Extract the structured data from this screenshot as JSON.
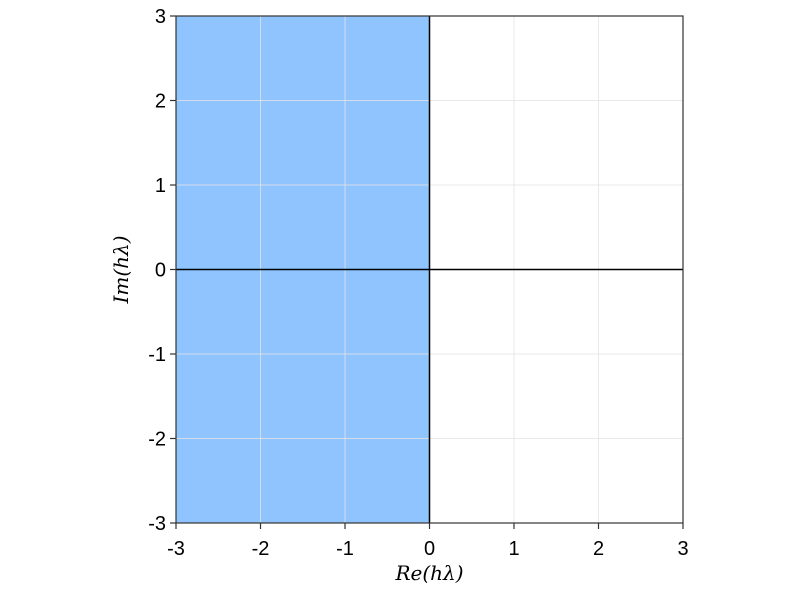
{
  "chart_data": {
    "type": "area",
    "xlabel": "Re(hλ)",
    "ylabel": "Im(hλ)",
    "xlim": [
      -3,
      3
    ],
    "ylim": [
      -3,
      3
    ],
    "x_ticks": [
      -3,
      -2,
      -1,
      0,
      1,
      2,
      3
    ],
    "y_ticks": [
      -3,
      -2,
      -1,
      0,
      1,
      2,
      3
    ],
    "x_tick_labels": [
      "-3",
      "-2",
      "-1",
      "0",
      "1",
      "2",
      "3"
    ],
    "y_tick_labels": [
      "-3",
      "-2",
      "-1",
      "0",
      "1",
      "2",
      "3"
    ],
    "grid": true,
    "reference_lines": {
      "x": 0,
      "y": 0
    },
    "regions": [
      {
        "x_range": [
          -3,
          0
        ],
        "y_range": [
          -3,
          3
        ],
        "color": "#8fc4ff"
      }
    ]
  },
  "colors": {
    "fill": "#8fc4ff",
    "grid": "#e4e4e4",
    "axis": "#000000",
    "frame": "#333333"
  }
}
